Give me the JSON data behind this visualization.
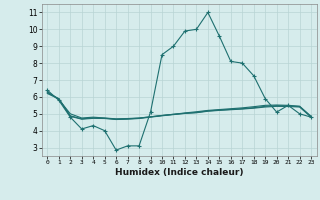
{
  "title": "",
  "xlabel": "Humidex (Indice chaleur)",
  "ylabel": "",
  "xlim": [
    -0.5,
    23.5
  ],
  "ylim": [
    2.5,
    11.5
  ],
  "yticks": [
    3,
    4,
    5,
    6,
    7,
    8,
    9,
    10,
    11
  ],
  "xticks": [
    0,
    1,
    2,
    3,
    4,
    5,
    6,
    7,
    8,
    9,
    10,
    11,
    12,
    13,
    14,
    15,
    16,
    17,
    18,
    19,
    20,
    21,
    22,
    23
  ],
  "bg_color": "#d6ecec",
  "grid_color": "#b8d4d4",
  "line_color": "#1e7070",
  "series": [
    {
      "x": [
        0,
        1,
        2,
        3,
        4,
        5,
        6,
        7,
        8,
        9,
        10,
        11,
        12,
        13,
        14,
        15,
        16,
        17,
        18,
        19,
        20,
        21,
        22,
        23
      ],
      "y": [
        6.4,
        5.8,
        4.8,
        4.1,
        4.3,
        4.0,
        2.85,
        3.1,
        3.1,
        5.1,
        8.5,
        9.0,
        9.9,
        10.0,
        11.0,
        9.6,
        8.1,
        8.0,
        7.25,
        5.9,
        5.1,
        5.5,
        5.0,
        4.8
      ],
      "marker": true
    },
    {
      "x": [
        0,
        1,
        2,
        3,
        4,
        5,
        6,
        7,
        8,
        9,
        10,
        11,
        12,
        13,
        14,
        15,
        16,
        17,
        18,
        19,
        20,
        21,
        22,
        23
      ],
      "y": [
        6.3,
        5.85,
        5.0,
        4.75,
        4.8,
        4.75,
        4.7,
        4.72,
        4.75,
        4.82,
        4.9,
        4.97,
        5.05,
        5.12,
        5.2,
        5.25,
        5.3,
        5.35,
        5.42,
        5.5,
        5.52,
        5.5,
        5.45,
        4.85
      ],
      "marker": false
    },
    {
      "x": [
        0,
        1,
        2,
        3,
        4,
        5,
        6,
        7,
        8,
        9,
        10,
        11,
        12,
        13,
        14,
        15,
        16,
        17,
        18,
        19,
        20,
        21,
        22,
        23
      ],
      "y": [
        6.25,
        5.9,
        4.88,
        4.7,
        4.76,
        4.74,
        4.68,
        4.7,
        4.74,
        4.82,
        4.9,
        4.97,
        5.03,
        5.08,
        5.17,
        5.22,
        5.26,
        5.3,
        5.36,
        5.44,
        5.48,
        5.46,
        5.43,
        4.82
      ],
      "marker": false
    },
    {
      "x": [
        0,
        1,
        2,
        3,
        4,
        5,
        6,
        7,
        8,
        9,
        10,
        11,
        12,
        13,
        14,
        15,
        16,
        17,
        18,
        19,
        20,
        21,
        22,
        23
      ],
      "y": [
        6.2,
        5.88,
        4.85,
        4.68,
        4.73,
        4.72,
        4.66,
        4.68,
        4.72,
        4.8,
        4.88,
        4.95,
        5.02,
        5.06,
        5.15,
        5.2,
        5.24,
        5.28,
        5.33,
        5.4,
        5.44,
        5.43,
        5.4,
        4.8
      ],
      "marker": false
    }
  ]
}
